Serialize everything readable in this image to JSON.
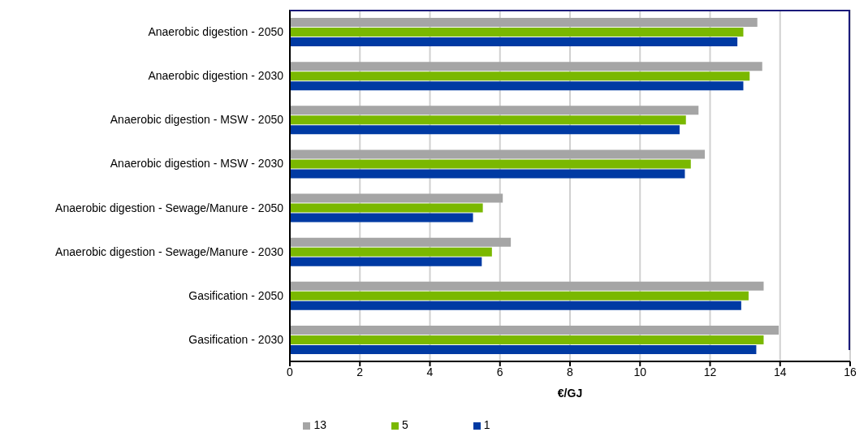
{
  "chart_data": {
    "type": "bar",
    "orientation": "horizontal",
    "xlabel": "€/GJ",
    "categories": [
      "Anaerobic digestion - 2050",
      "Anaerobic digestion - 2030",
      "Anaerobic digestion - MSW - 2050",
      "Anaerobic digestion - MSW - 2030",
      "Anaerobic digestion - Sewage/Manure - 2050",
      "Anaerobic digestion - Sewage/Manure - 2030",
      "Gasification - 2050",
      "Gasification - 2030"
    ],
    "series": [
      {
        "name": "13",
        "color": "#a5a5a5",
        "values": [
          13.35,
          13.49,
          11.67,
          11.85,
          6.08,
          6.31,
          13.53,
          13.96
        ]
      },
      {
        "name": "5",
        "color": "#7ab800",
        "values": [
          12.95,
          13.13,
          11.31,
          11.45,
          5.51,
          5.77,
          13.1,
          13.53
        ]
      },
      {
        "name": "1",
        "color": "#003aa3",
        "values": [
          12.78,
          12.95,
          11.13,
          11.28,
          5.23,
          5.48,
          12.89,
          13.32
        ]
      }
    ],
    "xlim": [
      0,
      16
    ],
    "xticks": [
      0,
      2,
      4,
      6,
      8,
      10,
      12,
      14,
      16
    ],
    "grid": "x",
    "legend": "bottom"
  }
}
